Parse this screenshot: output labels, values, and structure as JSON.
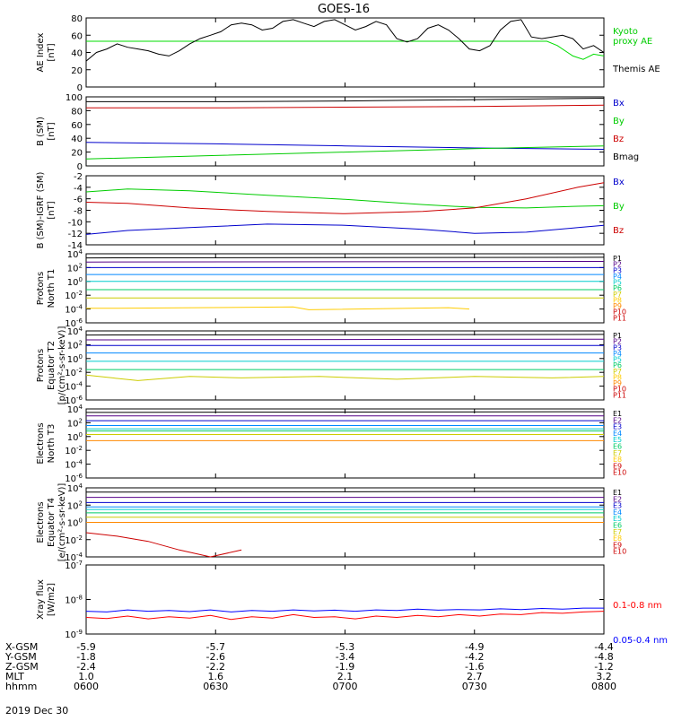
{
  "title": "GOES-16",
  "date_label": "2019 Dec 30",
  "chart_data": [
    {
      "id": "ae",
      "type": "line",
      "ylabel": [
        "AE Index",
        "[nT]"
      ],
      "ylim": [
        0,
        80
      ],
      "yticks": [
        0,
        20,
        40,
        60,
        80
      ],
      "log": false,
      "series": [
        {
          "name": "Kyoto proxy AE",
          "color": "#00dd00",
          "x": [
            0,
            0.89,
            0.91,
            0.94,
            0.96,
            0.98,
            1.0
          ],
          "y": [
            53,
            53,
            48,
            36,
            32,
            38,
            36
          ]
        },
        {
          "name": "Themis AE",
          "color": "#000000",
          "x": [
            0,
            0.02,
            0.04,
            0.06,
            0.08,
            0.1,
            0.12,
            0.14,
            0.16,
            0.18,
            0.2,
            0.22,
            0.24,
            0.26,
            0.28,
            0.3,
            0.32,
            0.34,
            0.36,
            0.38,
            0.4,
            0.42,
            0.44,
            0.46,
            0.48,
            0.5,
            0.52,
            0.54,
            0.56,
            0.58,
            0.6,
            0.62,
            0.64,
            0.66,
            0.68,
            0.7,
            0.72,
            0.74,
            0.76,
            0.78,
            0.8,
            0.82,
            0.84,
            0.86,
            0.88,
            0.9,
            0.92,
            0.94,
            0.96,
            0.98,
            1.0
          ],
          "y": [
            30,
            40,
            44,
            50,
            46,
            44,
            42,
            38,
            36,
            42,
            50,
            56,
            60,
            64,
            72,
            74,
            72,
            66,
            68,
            76,
            78,
            74,
            70,
            76,
            78,
            72,
            66,
            70,
            76,
            72,
            56,
            52,
            56,
            68,
            72,
            66,
            56,
            44,
            42,
            48,
            66,
            76,
            78,
            58,
            56,
            58,
            60,
            56,
            44,
            48,
            40
          ]
        }
      ],
      "legend": [
        "Kyoto",
        "proxy AE",
        "Themis AE"
      ]
    },
    {
      "id": "bsm",
      "type": "line",
      "ylabel": [
        "B (SM)",
        "[nT]"
      ],
      "ylim": [
        0,
        100
      ],
      "yticks": [
        0,
        20,
        40,
        60,
        80,
        100
      ],
      "log": false,
      "series": [
        {
          "name": "Bx",
          "color": "#0000cc",
          "x": [
            0,
            0.25,
            0.5,
            0.75,
            1.0
          ],
          "y": [
            34,
            32,
            29,
            26,
            24
          ]
        },
        {
          "name": "By",
          "color": "#00cc00",
          "x": [
            0,
            0.25,
            0.5,
            0.75,
            1.0
          ],
          "y": [
            10,
            15,
            20,
            25,
            29
          ]
        },
        {
          "name": "Bz",
          "color": "#cc0000",
          "x": [
            0,
            0.25,
            0.5,
            0.75,
            1.0
          ],
          "y": [
            84,
            84,
            85,
            86,
            88
          ]
        },
        {
          "name": "Bmag",
          "color": "#000000",
          "x": [
            0,
            0.25,
            0.5,
            0.75,
            1.0
          ],
          "y": [
            93,
            93,
            94,
            96,
            98
          ]
        }
      ],
      "legend": [
        "Bx",
        "By",
        "Bz",
        "Bmag"
      ]
    },
    {
      "id": "bigrf",
      "type": "line",
      "ylabel": [
        "B (SM)-IGRF (SM)",
        "[nT]"
      ],
      "ylim": [
        -14,
        -2
      ],
      "yticks": [
        -14,
        -12,
        -10,
        -8,
        -6,
        -4,
        -2
      ],
      "log": false,
      "series": [
        {
          "name": "Bx",
          "color": "#0000cc",
          "x": [
            0,
            0.08,
            0.2,
            0.35,
            0.5,
            0.65,
            0.75,
            0.85,
            0.95,
            1.0
          ],
          "y": [
            -12.2,
            -11.5,
            -11.0,
            -10.4,
            -10.6,
            -11.3,
            -12.0,
            -11.8,
            -11.0,
            -10.6
          ]
        },
        {
          "name": "By",
          "color": "#00cc00",
          "x": [
            0,
            0.08,
            0.2,
            0.35,
            0.5,
            0.65,
            0.75,
            0.85,
            0.95,
            1.0
          ],
          "y": [
            -4.8,
            -4.3,
            -4.6,
            -5.4,
            -6.1,
            -7.0,
            -7.5,
            -7.6,
            -7.3,
            -7.2
          ]
        },
        {
          "name": "Bz",
          "color": "#cc0000",
          "x": [
            0,
            0.08,
            0.2,
            0.35,
            0.5,
            0.65,
            0.75,
            0.85,
            0.95,
            1.0
          ],
          "y": [
            -6.6,
            -6.8,
            -7.6,
            -8.2,
            -8.6,
            -8.2,
            -7.6,
            -6.0,
            -4.0,
            -3.2
          ]
        }
      ],
      "legend": [
        "Bx",
        "By",
        "Bz"
      ]
    },
    {
      "id": "protons_north",
      "type": "line",
      "ylabel": [
        "Protons",
        "North T1"
      ],
      "ylim": [
        -6,
        4
      ],
      "yticks": [
        -6,
        -4,
        -2,
        0,
        2,
        4
      ],
      "log": true,
      "series": [
        {
          "name": "P1",
          "color": "#000000",
          "x": [
            0,
            1
          ],
          "y": [
            3.4,
            3.5
          ]
        },
        {
          "name": "P2",
          "color": "#550088",
          "x": [
            0,
            1
          ],
          "y": [
            2.8,
            2.9
          ]
        },
        {
          "name": "P3",
          "color": "#0000cc",
          "x": [
            0,
            1
          ],
          "y": [
            2.0,
            2.0
          ]
        },
        {
          "name": "P4",
          "color": "#0088ff",
          "x": [
            0,
            1
          ],
          "y": [
            1.0,
            1.0
          ]
        },
        {
          "name": "P5",
          "color": "#00cccc",
          "x": [
            0,
            1
          ],
          "y": [
            0.0,
            0.0
          ]
        },
        {
          "name": "P6",
          "color": "#00cc66",
          "x": [
            0,
            1
          ],
          "y": [
            -1.2,
            -1.2
          ]
        },
        {
          "name": "P7",
          "color": "#cccc00",
          "x": [
            0,
            1
          ],
          "y": [
            -2.4,
            -2.4
          ]
        },
        {
          "name": "P8",
          "color": "#ffcc00",
          "x": [
            0,
            0.06,
            0.4,
            0.43,
            0.7,
            0.74
          ],
          "y": [
            -3.9,
            -3.9,
            -3.7,
            -4.1,
            -3.8,
            -4.0
          ]
        }
      ],
      "legend": [
        "P1",
        "P2",
        "P3",
        "P4",
        "P5",
        "P6",
        "P7",
        "P8",
        "P9",
        "P10",
        "P11"
      ]
    },
    {
      "id": "protons_equator",
      "type": "line",
      "ylabel": [
        "Protons",
        "Equator T2",
        "[p/(cm²-s-sr-keV)]"
      ],
      "ylim": [
        -6,
        4
      ],
      "yticks": [
        -6,
        -4,
        -2,
        0,
        2,
        4
      ],
      "log": true,
      "series": [
        {
          "name": "P1",
          "color": "#000000",
          "x": [
            0,
            1
          ],
          "y": [
            3.4,
            3.5
          ]
        },
        {
          "name": "P2",
          "color": "#550088",
          "x": [
            0,
            1
          ],
          "y": [
            2.7,
            2.8
          ]
        },
        {
          "name": "P3",
          "color": "#0000cc",
          "x": [
            0,
            1
          ],
          "y": [
            1.9,
            1.9
          ]
        },
        {
          "name": "P4",
          "color": "#0088ff",
          "x": [
            0,
            1
          ],
          "y": [
            0.8,
            0.8
          ]
        },
        {
          "name": "P5",
          "color": "#00cccc",
          "x": [
            0,
            1
          ],
          "y": [
            -0.4,
            -0.4
          ]
        },
        {
          "name": "P6",
          "color": "#00cc66",
          "x": [
            0,
            1
          ],
          "y": [
            -1.6,
            -1.6
          ]
        },
        {
          "name": "P7",
          "color": "#cccc00",
          "x": [
            0,
            0.1,
            0.2,
            0.3,
            0.45,
            0.6,
            0.75,
            0.9,
            1.0
          ],
          "y": [
            -2.4,
            -3.2,
            -2.6,
            -2.8,
            -2.6,
            -3.0,
            -2.6,
            -2.8,
            -2.6
          ]
        }
      ],
      "legend": [
        "P1",
        "P2",
        "P3",
        "P4",
        "P5",
        "P6",
        "P7",
        "P8",
        "P9",
        "P10",
        "P11"
      ]
    },
    {
      "id": "electrons_north",
      "type": "line",
      "ylabel": [
        "Electrons",
        "North T3"
      ],
      "ylim": [
        -6,
        4
      ],
      "yticks": [
        -6,
        -4,
        -2,
        0,
        2,
        4
      ],
      "log": true,
      "series": [
        {
          "name": "E1",
          "color": "#000000",
          "x": [
            0,
            1
          ],
          "y": [
            3.5,
            3.6
          ]
        },
        {
          "name": "E2",
          "color": "#550088",
          "x": [
            0,
            1
          ],
          "y": [
            3.0,
            3.0
          ]
        },
        {
          "name": "E3",
          "color": "#0000cc",
          "x": [
            0,
            1
          ],
          "y": [
            2.3,
            2.3
          ]
        },
        {
          "name": "E4",
          "color": "#0088ff",
          "x": [
            0,
            1
          ],
          "y": [
            1.6,
            1.6
          ]
        },
        {
          "name": "E5",
          "color": "#00cccc",
          "x": [
            0,
            1
          ],
          "y": [
            1.1,
            1.1
          ]
        },
        {
          "name": "E6",
          "color": "#00cc66",
          "x": [
            0,
            1
          ],
          "y": [
            0.8,
            0.8
          ]
        },
        {
          "name": "E7",
          "color": "#cccc00",
          "x": [
            0,
            1
          ],
          "y": [
            0.3,
            0.3
          ]
        },
        {
          "name": "E8",
          "color": "#ff8800",
          "x": [
            0,
            1
          ],
          "y": [
            -0.6,
            -0.6
          ]
        }
      ],
      "legend": [
        "E1",
        "E2",
        "E3",
        "E4",
        "E5",
        "E6",
        "E7",
        "E8",
        "E9",
        "E10"
      ]
    },
    {
      "id": "electrons_equator",
      "type": "line",
      "ylabel": [
        "Electrons",
        "Equator T4",
        "[e/(cm²-s-sr-keV)]"
      ],
      "ylim": [
        -4,
        4
      ],
      "yticks": [
        -4,
        -2,
        0,
        2,
        4
      ],
      "log": true,
      "series": [
        {
          "name": "E1",
          "color": "#000000",
          "x": [
            0,
            1
          ],
          "y": [
            3.5,
            3.6
          ]
        },
        {
          "name": "E2",
          "color": "#550088",
          "x": [
            0,
            1
          ],
          "y": [
            2.9,
            2.9
          ]
        },
        {
          "name": "E3",
          "color": "#0000cc",
          "x": [
            0,
            1
          ],
          "y": [
            2.3,
            2.3
          ]
        },
        {
          "name": "E4",
          "color": "#0088ff",
          "x": [
            0,
            1
          ],
          "y": [
            1.8,
            1.8
          ]
        },
        {
          "name": "E5",
          "color": "#00cccc",
          "x": [
            0,
            1
          ],
          "y": [
            1.5,
            1.5
          ]
        },
        {
          "name": "E6",
          "color": "#00cc66",
          "x": [
            0,
            1
          ],
          "y": [
            1.1,
            1.1
          ]
        },
        {
          "name": "E7",
          "color": "#cccc00",
          "x": [
            0,
            1
          ],
          "y": [
            0.6,
            0.6
          ]
        },
        {
          "name": "E8",
          "color": "#ff8800",
          "x": [
            0,
            1
          ],
          "y": [
            0.0,
            0.0
          ]
        },
        {
          "name": "E9",
          "color": "#cc0000",
          "x": [
            0.0,
            0.06,
            0.12,
            0.18,
            0.24,
            0.3
          ],
          "y": [
            -1.2,
            -1.6,
            -2.2,
            -3.2,
            -4.0,
            -3.2
          ]
        }
      ],
      "legend": [
        "E1",
        "E2",
        "E3",
        "E4",
        "E5",
        "E6",
        "E7",
        "E8",
        "E9",
        "E10"
      ]
    },
    {
      "id": "xray",
      "type": "line",
      "ylabel": [
        "Xray flux",
        "[W/m2]"
      ],
      "ylim": [
        -9,
        -7
      ],
      "yticks": [
        -9,
        -8,
        -7
      ],
      "log": true,
      "series": [
        {
          "name": "0.1-0.8 nm",
          "color": "#ff0000",
          "x": [
            0,
            0.04,
            0.08,
            0.12,
            0.16,
            0.2,
            0.24,
            0.28,
            0.32,
            0.36,
            0.4,
            0.44,
            0.48,
            0.52,
            0.56,
            0.6,
            0.64,
            0.68,
            0.72,
            0.76,
            0.8,
            0.84,
            0.88,
            0.92,
            0.96,
            1.0
          ],
          "y": [
            -8.52,
            -8.55,
            -8.48,
            -8.56,
            -8.5,
            -8.54,
            -8.46,
            -8.58,
            -8.5,
            -8.54,
            -8.44,
            -8.52,
            -8.5,
            -8.56,
            -8.48,
            -8.52,
            -8.46,
            -8.5,
            -8.44,
            -8.48,
            -8.42,
            -8.44,
            -8.38,
            -8.4,
            -8.36,
            -8.34
          ]
        },
        {
          "name": "0.05-0.4 nm",
          "color": "#0000ff",
          "x": [
            0,
            0.04,
            0.08,
            0.12,
            0.16,
            0.2,
            0.24,
            0.28,
            0.32,
            0.36,
            0.4,
            0.44,
            0.48,
            0.52,
            0.56,
            0.6,
            0.64,
            0.68,
            0.72,
            0.76,
            0.8,
            0.84,
            0.88,
            0.92,
            0.96,
            1.0
          ],
          "y": [
            -8.34,
            -8.36,
            -8.3,
            -8.34,
            -8.32,
            -8.35,
            -8.3,
            -8.36,
            -8.32,
            -8.34,
            -8.3,
            -8.33,
            -8.31,
            -8.34,
            -8.3,
            -8.32,
            -8.28,
            -8.31,
            -8.29,
            -8.3,
            -8.27,
            -8.29,
            -8.26,
            -8.28,
            -8.25,
            -8.25
          ]
        }
      ],
      "legend": [
        "0.1-0.8 nm",
        "0.05-0.4 nm"
      ]
    }
  ],
  "x_axis": {
    "row_labels": [
      "X-GSM",
      "Y-GSM",
      "Z-GSM",
      "MLT",
      "hhmm"
    ],
    "columns": [
      [
        "-5.9",
        "-1.8",
        "-2.4",
        "1.0",
        "0600"
      ],
      [
        "-5.7",
        "-2.6",
        "-2.2",
        "1.6",
        "0630"
      ],
      [
        "-5.3",
        "-3.4",
        "-1.9",
        "2.1",
        "0700"
      ],
      [
        "-4.9",
        "-4.2",
        "-1.6",
        "2.7",
        "0730"
      ],
      [
        "-4.4",
        "-4.8",
        "-1.2",
        "3.2",
        "0800"
      ]
    ]
  }
}
